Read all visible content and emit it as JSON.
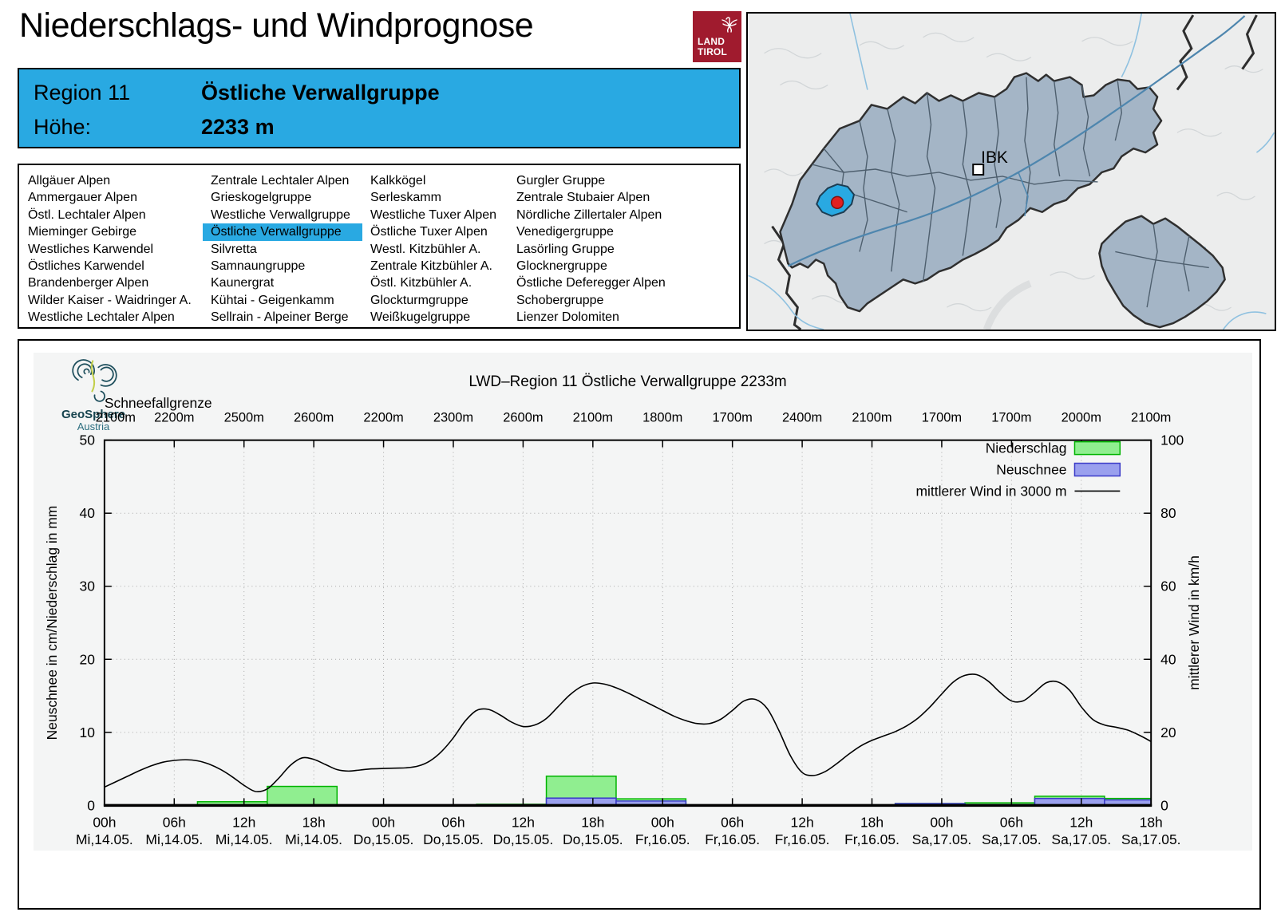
{
  "page": {
    "title": "Niederschlags- und Windprognose"
  },
  "logo": {
    "line1": "LAND",
    "line2": "TIROL"
  },
  "header": {
    "region_label": "Region 11",
    "region_name": "Östliche Verwallgruppe",
    "hoehe_label": "Höhe:",
    "hoehe_value": "2233 m"
  },
  "region_list": {
    "selected": "Östliche Verwallgruppe",
    "columns": [
      [
        "Allgäuer Alpen",
        "Ammergauer Alpen",
        "Östl. Lechtaler Alpen",
        "Mieminger Gebirge",
        "Westliches Karwendel",
        "Östliches Karwendel",
        "Brandenberger Alpen",
        "Wilder Kaiser - Waidringer A.",
        "Westliche Lechtaler Alpen"
      ],
      [
        "Zentrale Lechtaler Alpen",
        "Grieskogelgruppe",
        "Westliche Verwallgruppe",
        "Östliche Verwallgruppe",
        "Silvretta",
        "Samnaungruppe",
        "Kaunergrat",
        "Kühtai - Geigenkamm",
        "Sellrain - Alpeiner Berge"
      ],
      [
        "Kalkkögel",
        "Serleskamm",
        "Westliche Tuxer Alpen",
        "Östliche Tuxer Alpen",
        "Westl. Kitzbühler A.",
        "Zentrale Kitzbühler A.",
        "Östl. Kitzbühler A.",
        "Glockturmgruppe",
        "Weißkugelgruppe"
      ],
      [
        "Gurgler Gruppe",
        "Zentrale Stubaier Alpen",
        "Nördliche Zillertaler Alpen",
        "Venedigergruppe",
        "Lasörling Gruppe",
        "Glocknergruppe",
        "Östliche Deferegger Alpen",
        "Schobergruppe",
        "Lienzer Dolomiten"
      ]
    ]
  },
  "map": {
    "city_label": "IBK"
  },
  "geosphere": {
    "name": "GeoSphere",
    "sub": "Austria"
  },
  "chart_data": {
    "type": "composite",
    "title": "LWD–Region 11 Östliche Verwallgruppe 2233m",
    "snowline_label": "Schneefallgrenze",
    "snowline_values": [
      "2100m",
      "2200m",
      "2500m",
      "2600m",
      "2200m",
      "2300m",
      "2600m",
      "2100m",
      "1800m",
      "1700m",
      "2400m",
      "2100m",
      "1700m",
      "1700m",
      "2000m",
      "2100m"
    ],
    "ylabel_left": "Neuschnee in cm/Niederschlag in mm",
    "ylabel_right": "mittlerer Wind in km/h",
    "ylim_left": [
      0,
      50
    ],
    "ylim_right": [
      0,
      100
    ],
    "yticks_left": [
      0,
      10,
      20,
      30,
      40,
      50
    ],
    "grid": true,
    "legend_position": "top-right",
    "legend": [
      {
        "label": "Niederschlag",
        "type": "box",
        "fill": "#90ee90",
        "border": "#00b400"
      },
      {
        "label": "Neuschnee",
        "type": "box",
        "fill": "#9aa0ee",
        "border": "#3a3ac8"
      },
      {
        "label": "mittlerer Wind in 3000 m",
        "type": "line",
        "color": "#000000"
      }
    ],
    "x_hours_span": 90,
    "xticks": [
      {
        "hour": "00h",
        "day": "Mi,14.05."
      },
      {
        "hour": "06h",
        "day": "Mi,14.05."
      },
      {
        "hour": "12h",
        "day": "Mi,14.05."
      },
      {
        "hour": "18h",
        "day": "Mi,14.05."
      },
      {
        "hour": "00h",
        "day": "Do,15.05."
      },
      {
        "hour": "06h",
        "day": "Do,15.05."
      },
      {
        "hour": "12h",
        "day": "Do,15.05."
      },
      {
        "hour": "18h",
        "day": "Do,15.05."
      },
      {
        "hour": "00h",
        "day": "Fr,16.05."
      },
      {
        "hour": "06h",
        "day": "Fr,16.05."
      },
      {
        "hour": "12h",
        "day": "Fr,16.05."
      },
      {
        "hour": "18h",
        "day": "Fr,16.05."
      },
      {
        "hour": "00h",
        "day": "Sa,17.05."
      },
      {
        "hour": "06h",
        "day": "Sa,17.05."
      },
      {
        "hour": "12h",
        "day": "Sa,17.05."
      },
      {
        "hour": "18h",
        "day": "Sa,17.05."
      }
    ],
    "bars": [
      {
        "start_h": 8,
        "end_h": 14,
        "niederschlag_mm": 0.5,
        "neuschnee_cm": 0
      },
      {
        "start_h": 14,
        "end_h": 20,
        "niederschlag_mm": 2.6,
        "neuschnee_cm": 0
      },
      {
        "start_h": 32,
        "end_h": 38,
        "niederschlag_mm": 0.15,
        "neuschnee_cm": 0
      },
      {
        "start_h": 38,
        "end_h": 44,
        "niederschlag_mm": 4.0,
        "neuschnee_cm": 1.0
      },
      {
        "start_h": 44,
        "end_h": 50,
        "niederschlag_mm": 0.9,
        "neuschnee_cm": 0.6
      },
      {
        "start_h": 68,
        "end_h": 74,
        "niederschlag_mm": 0.25,
        "neuschnee_cm": 0.25
      },
      {
        "start_h": 74,
        "end_h": 80,
        "niederschlag_mm": 0.35,
        "neuschnee_cm": 0.1
      },
      {
        "start_h": 80,
        "end_h": 86,
        "niederschlag_mm": 1.25,
        "neuschnee_cm": 0.95
      },
      {
        "start_h": 86,
        "end_h": 90,
        "niederschlag_mm": 0.95,
        "neuschnee_cm": 0.75
      }
    ],
    "wind_series_kmh": [
      [
        0,
        5
      ],
      [
        1,
        6.5
      ],
      [
        2,
        8
      ],
      [
        3,
        9.5
      ],
      [
        4,
        10.8
      ],
      [
        5,
        11.8
      ],
      [
        6,
        12.3
      ],
      [
        7,
        12.5
      ],
      [
        8,
        12.2
      ],
      [
        9,
        11.3
      ],
      [
        10,
        9.8
      ],
      [
        11,
        7.8
      ],
      [
        12,
        5.5
      ],
      [
        13,
        3.8
      ],
      [
        14,
        4.5
      ],
      [
        15,
        7.5
      ],
      [
        16,
        11
      ],
      [
        17,
        13
      ],
      [
        18,
        12.6
      ],
      [
        19,
        11.2
      ],
      [
        20,
        9.8
      ],
      [
        21,
        9.4
      ],
      [
        22,
        9.7
      ],
      [
        23,
        10
      ],
      [
        24,
        10.1
      ],
      [
        25,
        10.2
      ],
      [
        26,
        10.3
      ],
      [
        27,
        10.8
      ],
      [
        28,
        12.2
      ],
      [
        29,
        14.8
      ],
      [
        30,
        18.5
      ],
      [
        31,
        23
      ],
      [
        32,
        26
      ],
      [
        33,
        26.3
      ],
      [
        34,
        24.8
      ],
      [
        35,
        22.8
      ],
      [
        36,
        21.6
      ],
      [
        37,
        22
      ],
      [
        38,
        23.8
      ],
      [
        39,
        27
      ],
      [
        40,
        30.2
      ],
      [
        41,
        32.5
      ],
      [
        42,
        33.5
      ],
      [
        43,
        33.2
      ],
      [
        44,
        32.2
      ],
      [
        45,
        30.8
      ],
      [
        46,
        29.2
      ],
      [
        47,
        27.6
      ],
      [
        48,
        26
      ],
      [
        49,
        24.4
      ],
      [
        50,
        23.2
      ],
      [
        51,
        22.4
      ],
      [
        52,
        22.4
      ],
      [
        53,
        23.6
      ],
      [
        54,
        26
      ],
      [
        55,
        28.6
      ],
      [
        56,
        29
      ],
      [
        57,
        26.5
      ],
      [
        58,
        20.5
      ],
      [
        59,
        13.5
      ],
      [
        60,
        9
      ],
      [
        61,
        8.2
      ],
      [
        62,
        9.3
      ],
      [
        63,
        11.5
      ],
      [
        64,
        14
      ],
      [
        65,
        16.2
      ],
      [
        66,
        17.8
      ],
      [
        67,
        19
      ],
      [
        68,
        20.2
      ],
      [
        69,
        21.8
      ],
      [
        70,
        24
      ],
      [
        71,
        27
      ],
      [
        72,
        30.5
      ],
      [
        73,
        33.8
      ],
      [
        74,
        35.6
      ],
      [
        75,
        35.8
      ],
      [
        76,
        34
      ],
      [
        77,
        31
      ],
      [
        78,
        28.6
      ],
      [
        79,
        28.6
      ],
      [
        80,
        31
      ],
      [
        81,
        33.6
      ],
      [
        82,
        33.8
      ],
      [
        83,
        31.5
      ],
      [
        84,
        27
      ],
      [
        85,
        23.5
      ],
      [
        86,
        22
      ],
      [
        87,
        21.4
      ],
      [
        88,
        20.6
      ],
      [
        89,
        19.2
      ],
      [
        90,
        17.5
      ]
    ]
  }
}
